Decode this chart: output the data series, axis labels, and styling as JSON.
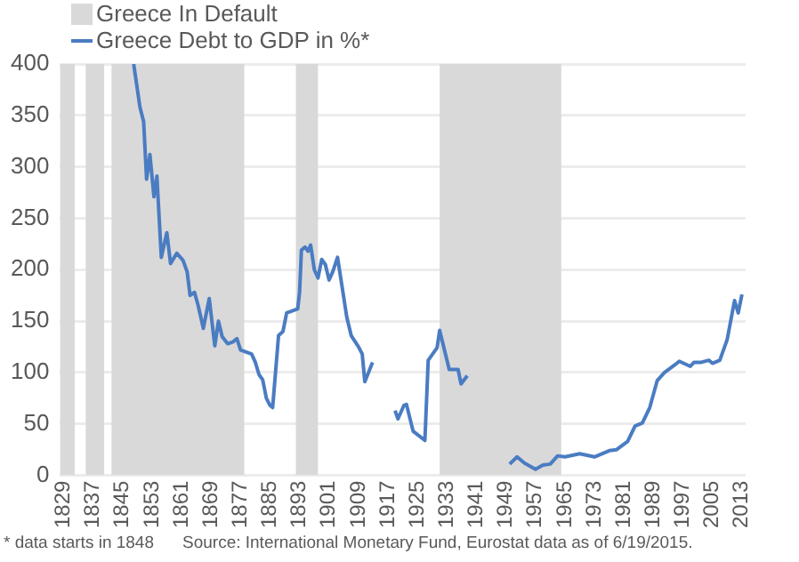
{
  "chart_data": {
    "type": "line",
    "series": [
      {
        "name": "Greece Debt to GDP in %*",
        "color": "#4a7cc2",
        "x": [
          1848,
          1849.7,
          1850.7,
          1851.5,
          1852.4,
          1853.5,
          1854.3,
          1855.5,
          1857,
          1858,
          1859.7,
          1861.4,
          1862.5,
          1863.3,
          1864.5,
          1865.5,
          1866.9,
          1868.5,
          1870,
          1871,
          1872,
          1873.5,
          1875,
          1876,
          1877,
          1878.5,
          1880,
          1881,
          1882,
          1883,
          1884,
          1885,
          1885.7,
          1887.3,
          1888.5,
          1889.5,
          1891,
          1892.5,
          1893,
          1893.5,
          1894.5,
          1895.3,
          1896,
          1897,
          1898,
          1899,
          1900,
          1901,
          1902,
          1903.3,
          1905.8,
          1907,
          1909,
          1910,
          1910.7,
          1912.8,
          1915,
          1918.9,
          1919.7,
          1921.3,
          1922,
          1923.8,
          1927,
          1927.9,
          1930.3,
          1931,
          1933.6,
          1936,
          1936.8,
          1938.5,
          1945,
          1950,
          1952,
          1954,
          1957,
          1959,
          1961,
          1963,
          1965,
          1969,
          1973,
          1977,
          1979,
          1982,
          1984,
          1986,
          1988,
          1990,
          1992,
          1995,
          1996,
          1999,
          2000,
          2002,
          2004,
          2005,
          2007,
          2009,
          2011,
          2012,
          2013
        ],
        "values": [
          400,
          358,
          344,
          288,
          312,
          271,
          291,
          212,
          236,
          206,
          216,
          209,
          198,
          175,
          178,
          165,
          143,
          172,
          126,
          150,
          135,
          128,
          130,
          133,
          122,
          120,
          118,
          110,
          98,
          93,
          75,
          68,
          66,
          136,
          140,
          158,
          160,
          162,
          178,
          219,
          222,
          218,
          224,
          200,
          192,
          210,
          205,
          190,
          198,
          212,
          154,
          136,
          125,
          118,
          91,
          110,
          null,
          63,
          55,
          68,
          69,
          43,
          34,
          112,
          124,
          141,
          103,
          103,
          89,
          97,
          null,
          11,
          18,
          12,
          6,
          10,
          11,
          19,
          18,
          21,
          18,
          24,
          25,
          33,
          48,
          51,
          66,
          92,
          100,
          108,
          111,
          106,
          110,
          110,
          112,
          109,
          112,
          132,
          170,
          158,
          176
        ]
      }
    ],
    "bands": [
      {
        "axis": "x",
        "from": 1828,
        "to": 1832,
        "label": "Greece In Default",
        "color": "#d9d9d9"
      },
      {
        "axis": "x",
        "from": 1835,
        "to": 1840,
        "color": "#d9d9d9"
      },
      {
        "axis": "x",
        "from": 1842,
        "to": 1878,
        "color": "#d9d9d9"
      },
      {
        "axis": "x",
        "from": 1892,
        "to": 1898,
        "color": "#d9d9d9"
      },
      {
        "axis": "x",
        "from": 1931,
        "to": 1964,
        "color": "#d9d9d9"
      }
    ],
    "xlim": [
      1828,
      2014
    ],
    "xticks": [
      1829,
      1837,
      1845,
      1853,
      1861,
      1869,
      1877,
      1885,
      1893,
      1901,
      1909,
      1917,
      1925,
      1933,
      1941,
      1949,
      1957,
      1965,
      1973,
      1981,
      1989,
      1997,
      2005,
      2013
    ],
    "ylim": [
      0,
      400
    ],
    "yticks": [
      0,
      50,
      100,
      150,
      200,
      250,
      300,
      350,
      400
    ],
    "grid": "y",
    "legend": "top left",
    "marker": "none",
    "line_style": "solid",
    "annotations": [
      "* data starts in 1848",
      "Source: International Monetary Fund, Eurostat data as of 6/19/2015."
    ]
  }
}
